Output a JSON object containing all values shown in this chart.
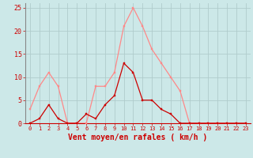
{
  "x": [
    0,
    1,
    2,
    3,
    4,
    5,
    6,
    7,
    8,
    9,
    10,
    11,
    12,
    13,
    14,
    15,
    16,
    17,
    18,
    19,
    20,
    21,
    22,
    23
  ],
  "rafales": [
    3,
    8,
    11,
    8,
    0,
    0,
    0,
    8,
    8,
    11,
    21,
    25,
    21,
    16,
    13,
    10,
    7,
    0,
    0,
    0,
    0,
    0,
    0,
    0
  ],
  "moyen": [
    0,
    1,
    4,
    1,
    0,
    0,
    2,
    1,
    4,
    6,
    13,
    11,
    5,
    5,
    3,
    2,
    0,
    0,
    0,
    0,
    0,
    0,
    0,
    0
  ],
  "xlabel": "Vent moyen/en rafales ( km/h )",
  "ylim": [
    0,
    26
  ],
  "xlim": [
    -0.5,
    23.5
  ],
  "yticks": [
    0,
    5,
    10,
    15,
    20,
    25
  ],
  "xticks": [
    0,
    1,
    2,
    3,
    4,
    5,
    6,
    7,
    8,
    9,
    10,
    11,
    12,
    13,
    14,
    15,
    16,
    17,
    18,
    19,
    20,
    21,
    22,
    23
  ],
  "bg_color": "#cce8e8",
  "grid_color": "#b0cccc",
  "line_rafales_color": "#ff8888",
  "line_moyen_color": "#cc0000",
  "tick_color": "#cc0000",
  "label_color": "#cc0000",
  "spine_color": "#888888"
}
